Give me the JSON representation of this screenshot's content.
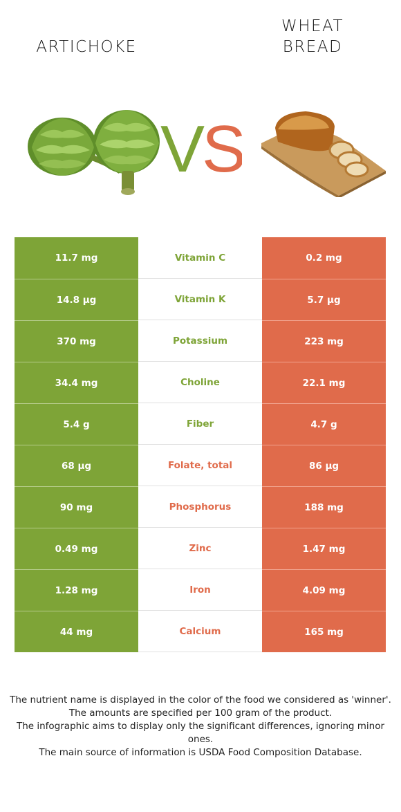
{
  "header": {
    "left_food": "ARTICHOKE",
    "right_food_line1": "WHEAT",
    "right_food_line2": "BREAD",
    "vs_left": "V",
    "vs_right": "S"
  },
  "colors": {
    "left_winner": "#7ea437",
    "right_winner": "#e06b4b"
  },
  "rows": [
    {
      "nutrient": "Vitamin C",
      "left": "11.7 mg",
      "right": "0.2 mg",
      "winner": "left"
    },
    {
      "nutrient": "Vitamin K",
      "left": "14.8 µg",
      "right": "5.7 µg",
      "winner": "left"
    },
    {
      "nutrient": "Potassium",
      "left": "370 mg",
      "right": "223 mg",
      "winner": "left"
    },
    {
      "nutrient": "Choline",
      "left": "34.4 mg",
      "right": "22.1 mg",
      "winner": "left"
    },
    {
      "nutrient": "Fiber",
      "left": "5.4 g",
      "right": "4.7 g",
      "winner": "left"
    },
    {
      "nutrient": "Folate, total",
      "left": "68 µg",
      "right": "86 µg",
      "winner": "right"
    },
    {
      "nutrient": "Phosphorus",
      "left": "90 mg",
      "right": "188 mg",
      "winner": "right"
    },
    {
      "nutrient": "Zinc",
      "left": "0.49 mg",
      "right": "1.47 mg",
      "winner": "right"
    },
    {
      "nutrient": "Iron",
      "left": "1.28 mg",
      "right": "4.09 mg",
      "winner": "right"
    },
    {
      "nutrient": "Calcium",
      "left": "44 mg",
      "right": "165 mg",
      "winner": "right"
    }
  ],
  "footer": {
    "line1": "The nutrient name is displayed in the color of the food we considered as 'winner'.",
    "line2": "The amounts are specified per 100 gram of the product.",
    "line3": "The infographic aims to display only the significant differences, ignoring minor ones.",
    "line4": "The main source of information is USDA Food Composition Database."
  }
}
